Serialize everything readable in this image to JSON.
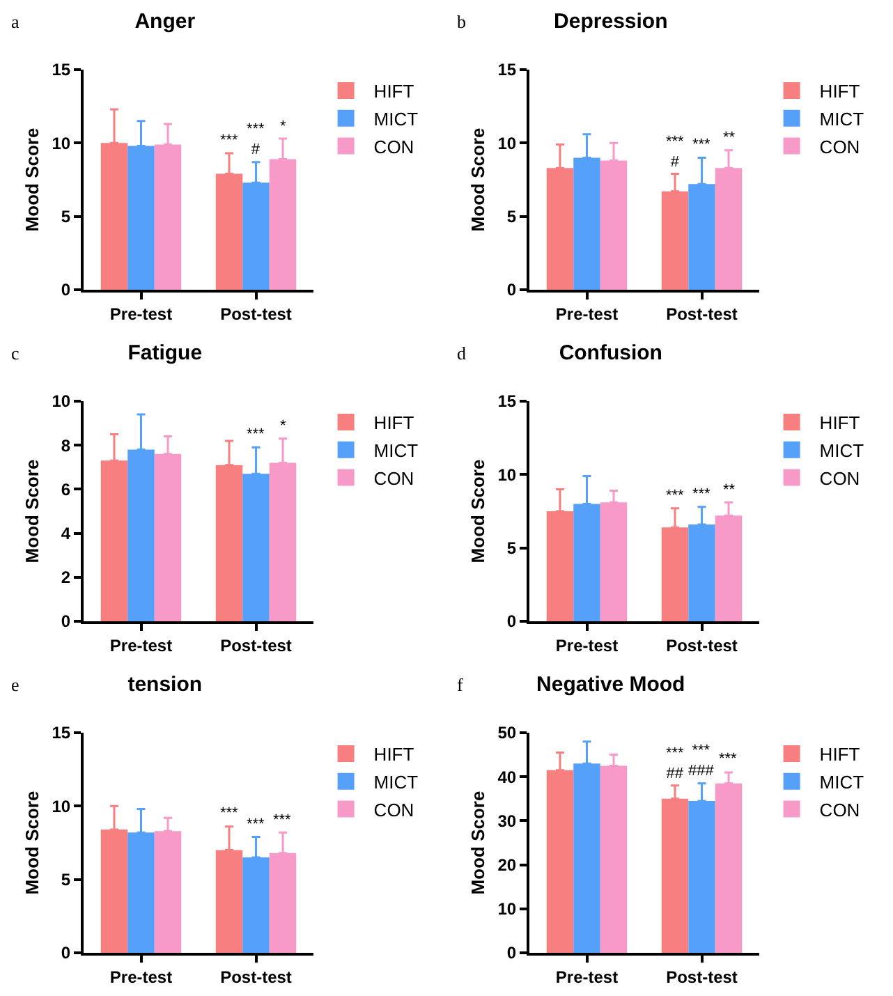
{
  "chart_data": [
    {
      "type": "bar",
      "title": "Anger",
      "ylabel": "Mood Score",
      "annotations": [
        "a"
      ],
      "categories": [
        "Pre-test",
        "Post-test"
      ],
      "ylim": [
        0,
        15
      ],
      "yticks": [
        0,
        5,
        10,
        15
      ],
      "legend": "right",
      "series": [
        {
          "name": "HIFT",
          "color": "#f87f7f",
          "values": [
            10.0,
            7.9
          ],
          "errors": [
            [
              10.0,
              12.3
            ],
            [
              7.9,
              9.3
            ]
          ],
          "value_labels": [
            null,
            "***"
          ]
        },
        {
          "name": "MICT",
          "color": "#55a0f8",
          "values": [
            9.8,
            7.3
          ],
          "errors": [
            [
              9.8,
              11.5
            ],
            [
              7.3,
              8.7
            ]
          ],
          "value_labels": [
            null,
            "***\n#"
          ]
        },
        {
          "name": "CON",
          "color": "#f89ac8",
          "values": [
            9.9,
            8.9
          ],
          "errors": [
            [
              9.9,
              11.3
            ],
            [
              8.9,
              10.3
            ]
          ],
          "value_labels": [
            null,
            "*"
          ]
        }
      ]
    },
    {
      "type": "bar",
      "title": "Depression",
      "ylabel": "Mood Score",
      "annotations": [
        "b"
      ],
      "categories": [
        "Pre-test",
        "Post-test"
      ],
      "ylim": [
        0,
        15
      ],
      "yticks": [
        0,
        5,
        10,
        15
      ],
      "legend": "right",
      "series": [
        {
          "name": "HIFT",
          "color": "#f87f7f",
          "values": [
            8.3,
            6.7
          ],
          "errors": [
            [
              8.3,
              9.9
            ],
            [
              6.7,
              7.9
            ]
          ],
          "value_labels": [
            null,
            "***\n#"
          ]
        },
        {
          "name": "MICT",
          "color": "#55a0f8",
          "values": [
            9.0,
            7.2
          ],
          "errors": [
            [
              9.0,
              10.6
            ],
            [
              7.2,
              9.0
            ]
          ],
          "value_labels": [
            null,
            "***"
          ]
        },
        {
          "name": "CON",
          "color": "#f89ac8",
          "values": [
            8.8,
            8.3
          ],
          "errors": [
            [
              8.8,
              10.0
            ],
            [
              8.3,
              9.5
            ]
          ],
          "value_labels": [
            null,
            "**"
          ]
        }
      ]
    },
    {
      "type": "bar",
      "title": "Fatigue",
      "ylabel": "Mood Score",
      "annotations": [
        "c"
      ],
      "categories": [
        "Pre-test",
        "Post-test"
      ],
      "ylim": [
        0,
        10
      ],
      "yticks": [
        0,
        2,
        4,
        6,
        8,
        10
      ],
      "legend": "right",
      "series": [
        {
          "name": "HIFT",
          "color": "#f87f7f",
          "values": [
            7.3,
            7.1
          ],
          "errors": [
            [
              7.3,
              8.5
            ],
            [
              7.1,
              8.2
            ]
          ],
          "value_labels": [
            null,
            null
          ]
        },
        {
          "name": "MICT",
          "color": "#55a0f8",
          "values": [
            7.8,
            6.7
          ],
          "errors": [
            [
              7.8,
              9.4
            ],
            [
              6.7,
              7.9
            ]
          ],
          "value_labels": [
            null,
            "***"
          ]
        },
        {
          "name": "CON",
          "color": "#f89ac8",
          "values": [
            7.6,
            7.2
          ],
          "errors": [
            [
              7.6,
              8.4
            ],
            [
              7.2,
              8.3
            ]
          ],
          "value_labels": [
            null,
            "*"
          ]
        }
      ]
    },
    {
      "type": "bar",
      "title": "Confusion",
      "ylabel": "Mood Score",
      "annotations": [
        "d"
      ],
      "categories": [
        "Pre-test",
        "Post-test"
      ],
      "ylim": [
        0,
        15
      ],
      "yticks": [
        0,
        5,
        10,
        15
      ],
      "legend": "right",
      "series": [
        {
          "name": "HIFT",
          "color": "#f87f7f",
          "values": [
            7.5,
            6.4
          ],
          "errors": [
            [
              7.5,
              9.0
            ],
            [
              6.4,
              7.7
            ]
          ],
          "value_labels": [
            null,
            "***"
          ]
        },
        {
          "name": "MICT",
          "color": "#55a0f8",
          "values": [
            8.0,
            6.6
          ],
          "errors": [
            [
              8.0,
              9.9
            ],
            [
              6.6,
              7.8
            ]
          ],
          "value_labels": [
            null,
            "***"
          ]
        },
        {
          "name": "CON",
          "color": "#f89ac8",
          "values": [
            8.1,
            7.2
          ],
          "errors": [
            [
              8.1,
              8.9
            ],
            [
              7.2,
              8.1
            ]
          ],
          "value_labels": [
            null,
            "**"
          ]
        }
      ]
    },
    {
      "type": "bar",
      "title": "tension",
      "ylabel": "Mood Score",
      "annotations": [
        "e"
      ],
      "categories": [
        "Pre-test",
        "Post-test"
      ],
      "ylim": [
        0,
        15
      ],
      "yticks": [
        0,
        5,
        10,
        15
      ],
      "legend": "right",
      "series": [
        {
          "name": "HIFT",
          "color": "#f87f7f",
          "values": [
            8.4,
            7.0
          ],
          "errors": [
            [
              8.4,
              10.0
            ],
            [
              7.0,
              8.6
            ]
          ],
          "value_labels": [
            null,
            "***"
          ]
        },
        {
          "name": "MICT",
          "color": "#55a0f8",
          "values": [
            8.2,
            6.5
          ],
          "errors": [
            [
              8.2,
              9.8
            ],
            [
              6.5,
              7.9
            ]
          ],
          "value_labels": [
            null,
            "***"
          ]
        },
        {
          "name": "CON",
          "color": "#f89ac8",
          "values": [
            8.3,
            6.8
          ],
          "errors": [
            [
              8.3,
              9.2
            ],
            [
              6.8,
              8.2
            ]
          ],
          "value_labels": [
            null,
            "***"
          ]
        }
      ]
    },
    {
      "type": "bar",
      "title": "Negative Mood",
      "ylabel": "Mood Score",
      "annotations": [
        "f"
      ],
      "categories": [
        "Pre-test",
        "Post-test"
      ],
      "ylim": [
        0,
        50
      ],
      "yticks": [
        0,
        10,
        20,
        30,
        40,
        50
      ],
      "legend": "right",
      "series": [
        {
          "name": "HIFT",
          "color": "#f87f7f",
          "values": [
            41.5,
            35.0
          ],
          "errors": [
            [
              41.5,
              45.5
            ],
            [
              35.0,
              38.0
            ]
          ],
          "value_labels": [
            null,
            "***\n##"
          ]
        },
        {
          "name": "MICT",
          "color": "#55a0f8",
          "values": [
            43.0,
            34.5
          ],
          "errors": [
            [
              43.0,
              48.0
            ],
            [
              34.5,
              38.5
            ]
          ],
          "value_labels": [
            null,
            "***\n###"
          ]
        },
        {
          "name": "CON",
          "color": "#f89ac8",
          "values": [
            42.5,
            38.5
          ],
          "errors": [
            [
              42.5,
              45.0
            ],
            [
              38.5,
              41.0
            ]
          ],
          "value_labels": [
            null,
            "***"
          ]
        }
      ]
    }
  ]
}
